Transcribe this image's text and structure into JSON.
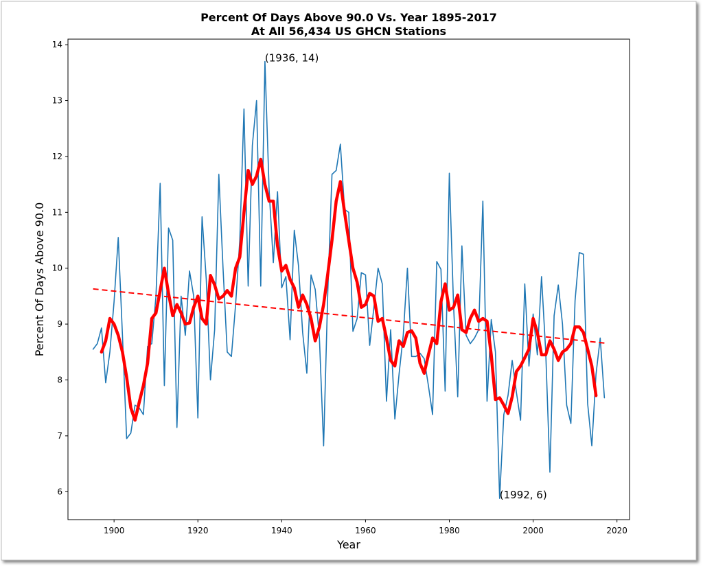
{
  "chart_data": {
    "type": "line",
    "title": "Percent Of Days Above 90.0 Vs. Year 1895-2017",
    "subtitle": "At All 56,434 US GHCN Stations",
    "xlabel": "Year",
    "ylabel": "Percent Of Days Above 90.0",
    "xlim": [
      1889,
      2023
    ],
    "ylim": [
      5.5,
      14.1
    ],
    "xticks": [
      1900,
      1920,
      1940,
      1960,
      1980,
      2000,
      2020
    ],
    "yticks": [
      6,
      7,
      8,
      9,
      10,
      11,
      12,
      13,
      14
    ],
    "grid": false,
    "series": [
      {
        "color": "#1f77b4",
        "style": "solid",
        "x": [
          1895,
          1896,
          1897,
          1898,
          1899,
          1900,
          1901,
          1902,
          1903,
          1904,
          1905,
          1906,
          1907,
          1908,
          1909,
          1910,
          1911,
          1912,
          1913,
          1914,
          1915,
          1916,
          1917,
          1918,
          1919,
          1920,
          1921,
          1922,
          1923,
          1924,
          1925,
          1926,
          1927,
          1928,
          1929,
          1930,
          1931,
          1932,
          1933,
          1934,
          1935,
          1936,
          1937,
          1938,
          1939,
          1940,
          1941,
          1942,
          1943,
          1944,
          1945,
          1946,
          1947,
          1948,
          1949,
          1950,
          1951,
          1952,
          1953,
          1954,
          1955,
          1956,
          1957,
          1958,
          1959,
          1960,
          1961,
          1962,
          1963,
          1964,
          1965,
          1966,
          1967,
          1968,
          1969,
          1970,
          1971,
          1972,
          1973,
          1974,
          1975,
          1976,
          1977,
          1978,
          1979,
          1980,
          1981,
          1982,
          1983,
          1984,
          1985,
          1986,
          1987,
          1988,
          1989,
          1990,
          1991,
          1992,
          1993,
          1994,
          1995,
          1996,
          1997,
          1998,
          1999,
          2000,
          2001,
          2002,
          2003,
          2004,
          2005,
          2006,
          2007,
          2008,
          2009,
          2010,
          2011,
          2012,
          2013,
          2014,
          2015,
          2016,
          2017
        ],
        "values": [
          8.55,
          8.65,
          8.93,
          7.95,
          8.5,
          9.4,
          10.55,
          8.8,
          6.95,
          7.05,
          7.55,
          7.5,
          7.38,
          8.6,
          8.65,
          9.5,
          11.52,
          7.9,
          10.72,
          10.5,
          7.15,
          9.5,
          8.8,
          9.95,
          9.5,
          7.32,
          10.92,
          9.8,
          8.0,
          8.9,
          11.68,
          10.0,
          8.5,
          8.42,
          9.35,
          10.5,
          12.85,
          9.68,
          12.2,
          13.0,
          9.68,
          13.7,
          11.4,
          10.1,
          11.37,
          9.65,
          9.85,
          8.72,
          10.68,
          10.05,
          8.85,
          8.12,
          9.88,
          9.62,
          8.75,
          6.82,
          9.58,
          11.68,
          11.75,
          12.22,
          11.05,
          11.0,
          8.87,
          9.1,
          9.92,
          9.88,
          8.62,
          9.3,
          10.0,
          9.72,
          7.62,
          8.9,
          7.3,
          8.1,
          8.8,
          10.0,
          8.42,
          8.42,
          8.48,
          8.38,
          7.9,
          7.38,
          10.12,
          9.98,
          7.8,
          11.7,
          9.35,
          7.7,
          10.4,
          8.8,
          8.65,
          8.75,
          8.9,
          11.2,
          7.62,
          9.08,
          8.5,
          5.88,
          7.38,
          7.72,
          8.35,
          7.78,
          7.28,
          9.72,
          8.25,
          9.18,
          8.45,
          9.85,
          8.5,
          6.35,
          9.15,
          9.7,
          9.0,
          7.55,
          7.22,
          9.42,
          10.28,
          10.25,
          7.58,
          6.82,
          8.1,
          8.75,
          7.68
        ]
      },
      {
        "color": "#ff0000",
        "style": "solid",
        "x": [
          1897,
          1898,
          1899,
          1900,
          1901,
          1902,
          1903,
          1904,
          1905,
          1906,
          1907,
          1908,
          1909,
          1910,
          1911,
          1912,
          1913,
          1914,
          1915,
          1916,
          1917,
          1918,
          1919,
          1920,
          1921,
          1922,
          1923,
          1924,
          1925,
          1926,
          1927,
          1928,
          1929,
          1930,
          1931,
          1932,
          1933,
          1934,
          1935,
          1936,
          1937,
          1938,
          1939,
          1940,
          1941,
          1942,
          1943,
          1944,
          1945,
          1946,
          1947,
          1948,
          1949,
          1950,
          1951,
          1952,
          1953,
          1954,
          1955,
          1956,
          1957,
          1958,
          1959,
          1960,
          1961,
          1962,
          1963,
          1964,
          1965,
          1966,
          1967,
          1968,
          1969,
          1970,
          1971,
          1972,
          1973,
          1974,
          1975,
          1976,
          1977,
          1978,
          1979,
          1980,
          1981,
          1982,
          1983,
          1984,
          1985,
          1986,
          1987,
          1988,
          1989,
          1990,
          1991,
          1992,
          1993,
          1994,
          1995,
          1996,
          1997,
          1998,
          1999,
          2000,
          2001,
          2002,
          2003,
          2004,
          2005,
          2006,
          2007,
          2008,
          2009,
          2010,
          2011,
          2012,
          2013,
          2014,
          2015
        ],
        "values": [
          8.5,
          8.7,
          9.1,
          9.0,
          8.8,
          8.5,
          8.05,
          7.5,
          7.28,
          7.6,
          7.9,
          8.3,
          9.1,
          9.2,
          9.6,
          10.0,
          9.55,
          9.15,
          9.35,
          9.2,
          9.0,
          9.02,
          9.3,
          9.5,
          9.1,
          9.0,
          9.87,
          9.7,
          9.45,
          9.5,
          9.6,
          9.5,
          10.0,
          10.2,
          11.0,
          11.75,
          11.5,
          11.65,
          11.95,
          11.5,
          11.2,
          11.2,
          10.4,
          9.95,
          10.05,
          9.8,
          9.65,
          9.3,
          9.52,
          9.35,
          9.1,
          8.7,
          8.95,
          9.35,
          9.9,
          10.5,
          11.2,
          11.55,
          11.0,
          10.5,
          10.0,
          9.75,
          9.3,
          9.35,
          9.55,
          9.5,
          9.05,
          9.1,
          8.75,
          8.35,
          8.25,
          8.7,
          8.6,
          8.85,
          8.88,
          8.75,
          8.3,
          8.12,
          8.45,
          8.75,
          8.65,
          9.4,
          9.72,
          9.25,
          9.3,
          9.52,
          8.9,
          8.85,
          9.1,
          9.25,
          9.05,
          9.1,
          9.05,
          8.45,
          7.65,
          7.68,
          7.55,
          7.4,
          7.7,
          8.15,
          8.25,
          8.4,
          8.55,
          9.1,
          8.85,
          8.45,
          8.45,
          8.7,
          8.55,
          8.35,
          8.5,
          8.55,
          8.65,
          8.95,
          8.95,
          8.85,
          8.55,
          8.25,
          7.72
        ]
      },
      {
        "color": "#ff0000",
        "style": "dashed",
        "x": [
          1895,
          2017
        ],
        "values": [
          9.63,
          8.66
        ]
      }
    ],
    "annotations": [
      {
        "text": "(1936, 14)",
        "x": 1936,
        "y": 13.7
      },
      {
        "text": "(1992, 6)",
        "x": 1992,
        "y": 5.88
      }
    ]
  }
}
